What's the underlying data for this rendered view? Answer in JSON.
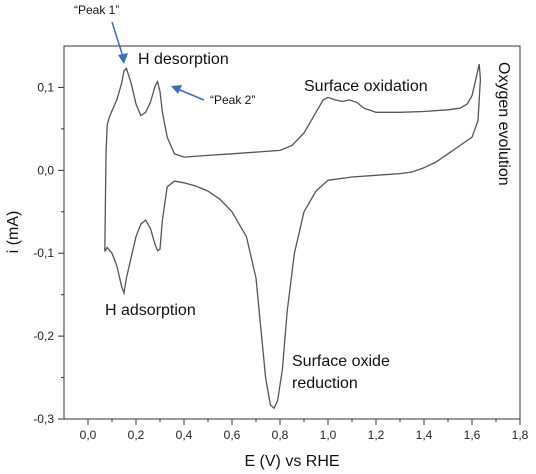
{
  "chart_data": {
    "type": "line",
    "xlabel": "E (V) vs RHE",
    "ylabel": "i (mA)",
    "xlim": [
      -0.1,
      1.8
    ],
    "ylim": [
      -0.3,
      0.15
    ],
    "x_ticks": [
      0.0,
      0.2,
      0.4,
      0.6,
      0.8,
      1.0,
      1.2,
      1.4,
      1.6,
      1.8
    ],
    "x_tick_labels": [
      "0,0",
      "0,2",
      "0,4",
      "0,6",
      "0,8",
      "1,0",
      "1,2",
      "1,4",
      "1,6",
      "1,8"
    ],
    "y_ticks": [
      -0.3,
      -0.2,
      -0.1,
      0.0,
      0.1
    ],
    "y_tick_labels": [
      "-0,3",
      "-0,2",
      "-0,1",
      "0,0",
      "0,1"
    ],
    "grid": false,
    "line_color": "#555555",
    "arrow_color": "#3a70b8",
    "series": [
      {
        "points": [
          [
            0.07,
            -0.098
          ],
          [
            0.075,
            0.02
          ],
          [
            0.08,
            0.055
          ],
          [
            0.09,
            0.065
          ],
          [
            0.1,
            0.072
          ],
          [
            0.12,
            0.085
          ],
          [
            0.14,
            0.105
          ],
          [
            0.15,
            0.12
          ],
          [
            0.16,
            0.123
          ],
          [
            0.18,
            0.105
          ],
          [
            0.2,
            0.08
          ],
          [
            0.22,
            0.066
          ],
          [
            0.24,
            0.07
          ],
          [
            0.26,
            0.082
          ],
          [
            0.28,
            0.102
          ],
          [
            0.29,
            0.107
          ],
          [
            0.3,
            0.095
          ],
          [
            0.31,
            0.07
          ],
          [
            0.33,
            0.04
          ],
          [
            0.36,
            0.02
          ],
          [
            0.4,
            0.016
          ],
          [
            0.5,
            0.018
          ],
          [
            0.6,
            0.02
          ],
          [
            0.7,
            0.022
          ],
          [
            0.8,
            0.024
          ],
          [
            0.85,
            0.03
          ],
          [
            0.9,
            0.045
          ],
          [
            0.95,
            0.07
          ],
          [
            0.98,
            0.085
          ],
          [
            1.0,
            0.088
          ],
          [
            1.03,
            0.085
          ],
          [
            1.06,
            0.083
          ],
          [
            1.09,
            0.085
          ],
          [
            1.12,
            0.082
          ],
          [
            1.15,
            0.075
          ],
          [
            1.2,
            0.07
          ],
          [
            1.3,
            0.07
          ],
          [
            1.4,
            0.071
          ],
          [
            1.5,
            0.073
          ],
          [
            1.55,
            0.075
          ],
          [
            1.58,
            0.08
          ],
          [
            1.6,
            0.09
          ],
          [
            1.62,
            0.115
          ],
          [
            1.63,
            0.128
          ],
          [
            1.635,
            0.11
          ],
          [
            1.625,
            0.06
          ],
          [
            1.6,
            0.04
          ],
          [
            1.55,
            0.03
          ],
          [
            1.5,
            0.02
          ],
          [
            1.45,
            0.01
          ],
          [
            1.4,
            0.003
          ],
          [
            1.35,
            -0.002
          ],
          [
            1.3,
            -0.004
          ],
          [
            1.2,
            -0.006
          ],
          [
            1.1,
            -0.008
          ],
          [
            1.0,
            -0.012
          ],
          [
            0.95,
            -0.025
          ],
          [
            0.9,
            -0.05
          ],
          [
            0.86,
            -0.1
          ],
          [
            0.83,
            -0.17
          ],
          [
            0.81,
            -0.24
          ],
          [
            0.79,
            -0.278
          ],
          [
            0.775,
            -0.287
          ],
          [
            0.76,
            -0.283
          ],
          [
            0.74,
            -0.25
          ],
          [
            0.72,
            -0.19
          ],
          [
            0.7,
            -0.13
          ],
          [
            0.66,
            -0.08
          ],
          [
            0.6,
            -0.05
          ],
          [
            0.55,
            -0.035
          ],
          [
            0.5,
            -0.025
          ],
          [
            0.45,
            -0.019
          ],
          [
            0.4,
            -0.015
          ],
          [
            0.36,
            -0.013
          ],
          [
            0.33,
            -0.02
          ],
          [
            0.31,
            -0.06
          ],
          [
            0.3,
            -0.095
          ],
          [
            0.29,
            -0.097
          ],
          [
            0.28,
            -0.09
          ],
          [
            0.26,
            -0.07
          ],
          [
            0.24,
            -0.06
          ],
          [
            0.22,
            -0.065
          ],
          [
            0.2,
            -0.08
          ],
          [
            0.18,
            -0.105
          ],
          [
            0.16,
            -0.13
          ],
          [
            0.15,
            -0.148
          ],
          [
            0.14,
            -0.14
          ],
          [
            0.12,
            -0.115
          ],
          [
            0.1,
            -0.1
          ],
          [
            0.08,
            -0.093
          ],
          [
            0.07,
            -0.098
          ]
        ]
      }
    ],
    "annotations": {
      "h_desorption": "H desorption",
      "surface_oxidation": "Surface oxidation",
      "oxygen_evolution": "Oxygen evolution",
      "peak1": "“Peak 1”",
      "peak2": "“Peak 2”",
      "h_adsorption": "H adsorption",
      "surface_oxide_line1": "Surface oxide",
      "surface_oxide_line2": "reduction"
    }
  }
}
